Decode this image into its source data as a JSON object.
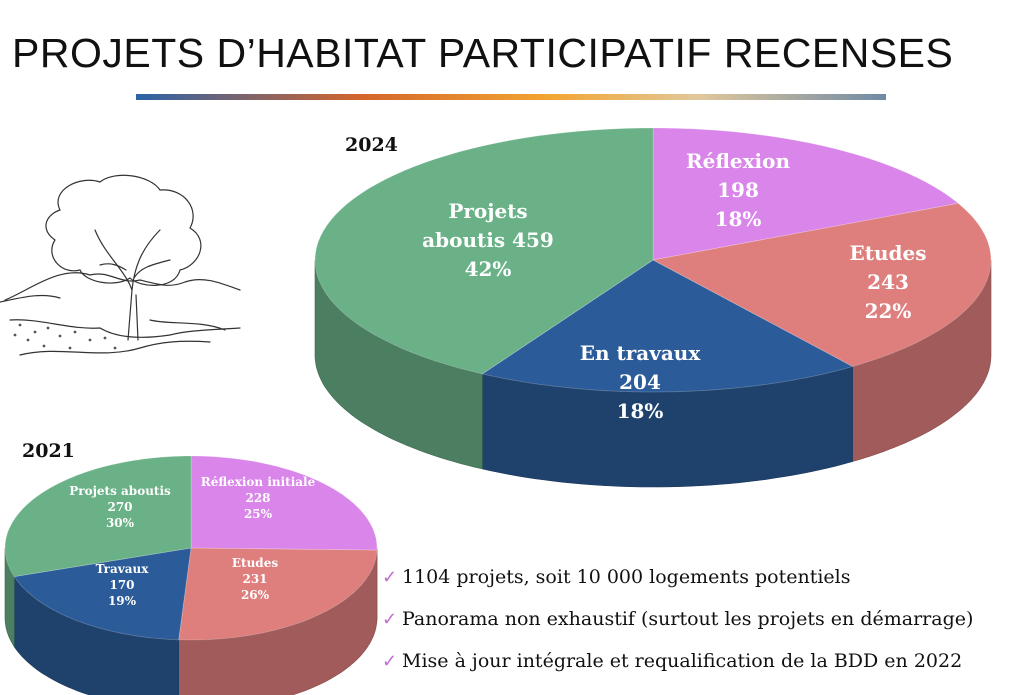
{
  "title": "PROJETS D’HABITAT PARTICIPATIF RECENSES",
  "tree_icon": "tree-sketch",
  "check_icon": "check-icon",
  "colors": {
    "green": "#6ab187",
    "pink": "#d985ea",
    "salmon": "#de7f7d",
    "blue": "#2b5b98"
  },
  "bullets": [
    "1104 projets, soit 10 000 logements potentiels",
    "Panorama non exhaustif (surtout les projets en démarrage)",
    "Mise à jour intégrale et requalification de la BDD en 2022"
  ],
  "chart_data": [
    {
      "type": "pie",
      "title": "2024",
      "slices": [
        {
          "label": "Réflexion",
          "value": 198,
          "percent": "18%",
          "color": "#d985ea"
        },
        {
          "label": "Etudes",
          "value": 243,
          "percent": "22%",
          "color": "#de7f7d"
        },
        {
          "label": "En travaux",
          "value": 204,
          "percent": "18%",
          "color": "#2b5b98"
        },
        {
          "label": "Projets aboutis",
          "value": 459,
          "percent": "42%",
          "color": "#6ab187"
        }
      ],
      "labels": [
        [
          "Réflexion",
          "198",
          "18%"
        ],
        [
          "Etudes",
          "243",
          "22%"
        ],
        [
          "En travaux",
          "204",
          "18%"
        ],
        [
          "Projets",
          "aboutis 459",
          "42%"
        ]
      ]
    },
    {
      "type": "pie",
      "title": "2021",
      "slices": [
        {
          "label": "Réflexion initiale",
          "value": 228,
          "percent": "25%",
          "color": "#d985ea"
        },
        {
          "label": "Etudes",
          "value": 231,
          "percent": "26%",
          "color": "#de7f7d"
        },
        {
          "label": "Travaux",
          "value": 170,
          "percent": "19%",
          "color": "#2b5b98"
        },
        {
          "label": "Projets aboutis",
          "value": 270,
          "percent": "30%",
          "color": "#6ab187"
        }
      ],
      "labels": [
        [
          "Réflexion initiale",
          "228",
          "25%"
        ],
        [
          "Etudes",
          "231",
          "26%"
        ],
        [
          "Travaux",
          "170",
          "19%"
        ],
        [
          "Projets aboutis",
          "270",
          "30%"
        ]
      ]
    }
  ]
}
